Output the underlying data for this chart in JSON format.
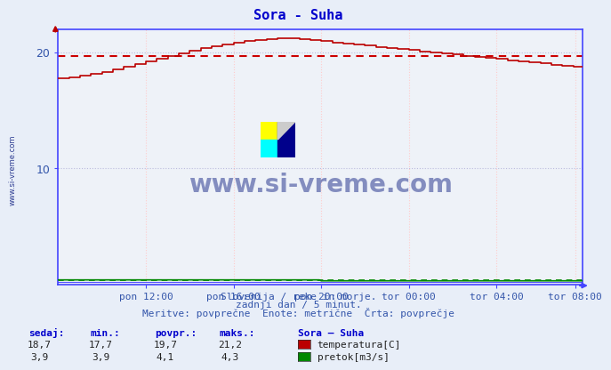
{
  "title": "Sora - Suha",
  "title_color": "#0000cc",
  "bg_color": "#e8eef8",
  "plot_bg_color": "#eef2f8",
  "axis_color": "#4444ff",
  "grid_color_h": "#bbbbdd",
  "grid_color_v": "#ffcccc",
  "temp_color": "#bb0000",
  "pretok_color": "#008800",
  "avg_temp_color": "#cc0000",
  "avg_pretok_color": "#008800",
  "temp_min": 17.7,
  "temp_max": 21.2,
  "temp_avg": 19.7,
  "pretok_min": 3.9,
  "pretok_max": 4.3,
  "pretok_avg": 4.1,
  "pretok_cur": 3.9,
  "ylim": [
    0,
    22
  ],
  "yticks": [
    10,
    20
  ],
  "n_points": 288,
  "x_tick_labels": [
    "pon 12:00",
    "pon 16:00",
    "pon 20:00",
    "tor 00:00",
    "tor 04:00",
    "tor 08:00"
  ],
  "x_tick_positions": [
    48,
    96,
    144,
    192,
    240,
    283
  ],
  "subtitle_line1": "Slovenija / reke in morje.",
  "subtitle_line2": "zadnji dan / 5 minut.",
  "subtitle_line3": "Meritve: povprečne  Enote: metrične  Črta: povprečje",
  "subtitle_color": "#3355aa",
  "table_headers": [
    "sedaj:",
    "min.:",
    "povpr.:",
    "maks.:"
  ],
  "table_temp": [
    "18,7",
    "17,7",
    "19,7",
    "21,2"
  ],
  "table_pretok": [
    "3,9",
    "3,9",
    "4,1",
    "4,3"
  ],
  "legend_station": "Sora – Suha",
  "legend_temp_label": "temperatura[C]",
  "legend_pretok_label": "pretok[m3/s]",
  "watermark": "www.si-vreme.com",
  "watermark_color": "#1a2a88"
}
